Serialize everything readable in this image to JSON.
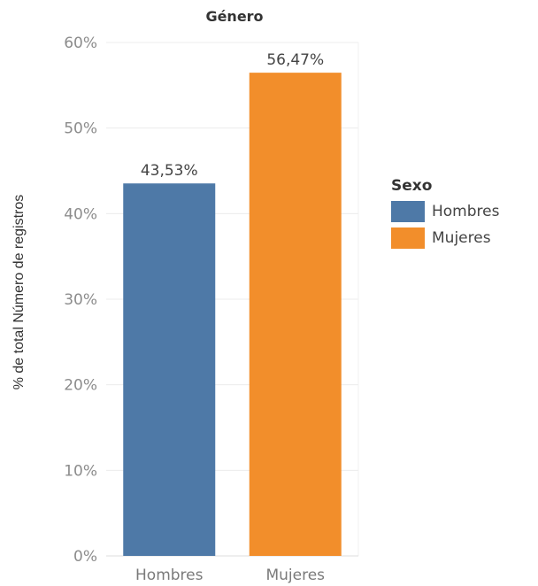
{
  "chart_data": {
    "type": "bar",
    "title": "Género",
    "ylabel": "% de total Número de registros",
    "xlabel": "",
    "categories": [
      "Hombres",
      "Mujeres"
    ],
    "values": [
      43.53,
      56.47
    ],
    "data_labels": [
      "43,53%",
      "56,47%"
    ],
    "colors": [
      "#4e79a7",
      "#f28e2b"
    ],
    "ylim": [
      0,
      60
    ],
    "yticks": [
      0,
      10,
      20,
      30,
      40,
      50,
      60
    ],
    "ytick_labels": [
      "0%",
      "10%",
      "20%",
      "30%",
      "40%",
      "50%",
      "60%"
    ],
    "grid": true,
    "legend": {
      "title": "Sexo",
      "placement": "right",
      "items": [
        "Hombres",
        "Mujeres"
      ]
    }
  }
}
